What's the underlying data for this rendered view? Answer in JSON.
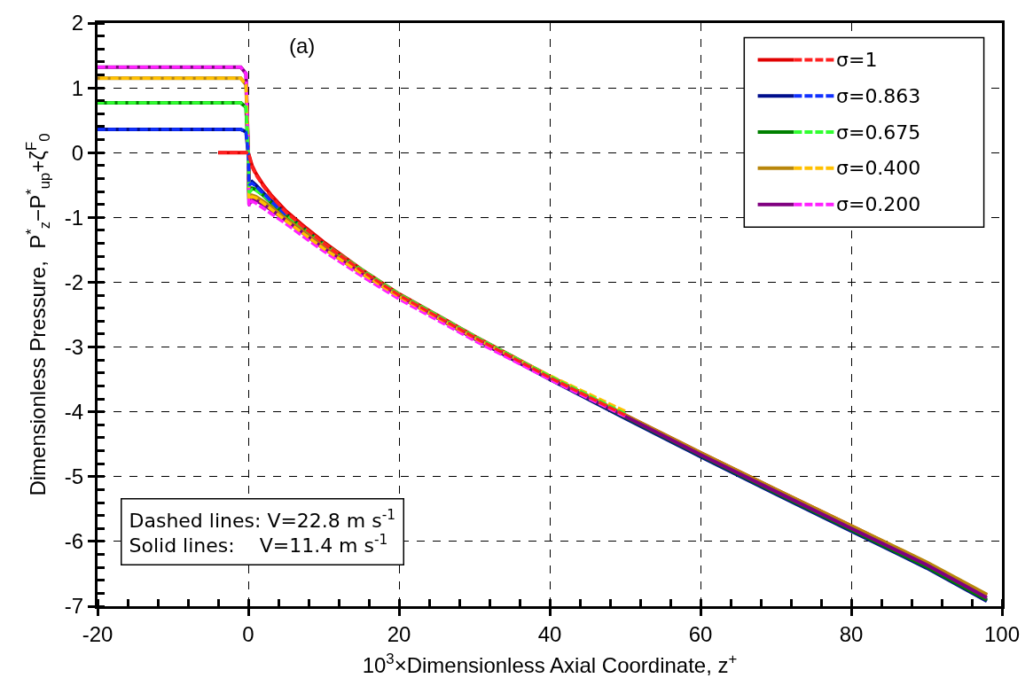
{
  "chart_data": {
    "type": "line",
    "xlabel": "10$^{3}$×Dimensionless Axial Coordinate, z$^{+}$",
    "ylabel": "Dimensionless Pressure,  P$^{*}$$_{z}$−P$^{*}$$_{up}$+ζ$^{F}$$_{0}$",
    "annotations": [
      "(a)",
      "Dashed lines: V=22.8 m s$^{-1}$",
      "Solid lines:    V=11.4 m s$^{-1}$"
    ],
    "xlim": [
      -20,
      100
    ],
    "xticks": [
      -20,
      0,
      20,
      40,
      60,
      80,
      100
    ],
    "ylim": [
      -7,
      2
    ],
    "yticks": [
      -7,
      -6,
      -5,
      -4,
      -3,
      -2,
      -1,
      0,
      1,
      2
    ],
    "grid": true,
    "legend": "top right",
    "marker": "none",
    "series": [
      {
        "name": "σ=1",
        "color": "#e00000",
        "line_style": "solid",
        "x": [
          -4,
          -0.5,
          0,
          0.5,
          1,
          2,
          3,
          5,
          7,
          10,
          15,
          20,
          30,
          40,
          50,
          60,
          70,
          80,
          90,
          98
        ],
        "values": [
          0,
          0,
          0,
          -0.2,
          -0.32,
          -0.5,
          -0.65,
          -0.9,
          -1.1,
          -1.38,
          -1.8,
          -2.18,
          -2.83,
          -3.45,
          -4.05,
          -4.63,
          -5.2,
          -5.76,
          -6.33,
          -6.83
        ]
      },
      {
        "color": "#ff2020",
        "line_style": "dashed",
        "x": [
          -4,
          -0.5,
          0,
          0.5,
          1,
          2,
          3,
          5,
          7,
          10,
          15,
          20,
          30,
          40,
          50
        ],
        "values": [
          0,
          0,
          0,
          -0.22,
          -0.34,
          -0.52,
          -0.67,
          -0.92,
          -1.12,
          -1.4,
          -1.82,
          -2.2,
          -2.85,
          -3.47,
          -4.05
        ]
      },
      {
        "name": "σ=0.863",
        "color": "#000e8c",
        "line_style": "solid",
        "x": [
          -20,
          -1,
          -0.3,
          0,
          0.1,
          0.5,
          1,
          2,
          3,
          5,
          7,
          10,
          15,
          20,
          30,
          40,
          50,
          60,
          70,
          80,
          90,
          98
        ],
        "values": [
          0.36,
          0.36,
          0.32,
          0,
          -0.5,
          -0.45,
          -0.5,
          -0.62,
          -0.74,
          -0.95,
          -1.14,
          -1.42,
          -1.83,
          -2.21,
          -2.87,
          -3.5,
          -4.1,
          -4.69,
          -5.27,
          -5.84,
          -6.41,
          -6.92
        ]
      },
      {
        "color": "#1030ff",
        "line_style": "dashed",
        "x": [
          -20,
          -1,
          -0.3,
          0,
          0.1,
          0.5,
          1,
          2,
          3,
          5
        ],
        "values": [
          0.36,
          0.36,
          0.32,
          0,
          -0.5,
          -0.47,
          -0.52,
          -0.63,
          -0.75,
          -0.96
        ]
      },
      {
        "name": "σ=0.675",
        "color": "#008000",
        "line_style": "solid",
        "x": [
          -20,
          -1,
          -0.3,
          0,
          0.1,
          0.5,
          1,
          2,
          3,
          5,
          7,
          10,
          15,
          20,
          30,
          40,
          50,
          60,
          70,
          80,
          90,
          98
        ],
        "values": [
          0.77,
          0.77,
          0.7,
          0,
          -0.6,
          -0.55,
          -0.57,
          -0.66,
          -0.77,
          -0.97,
          -1.15,
          -1.43,
          -1.83,
          -2.2,
          -2.86,
          -3.48,
          -4.08,
          -4.67,
          -5.25,
          -5.82,
          -6.39,
          -6.9
        ]
      },
      {
        "color": "#30ff30",
        "line_style": "dashed",
        "x": [
          -20,
          -1,
          -0.3,
          0,
          0.1,
          0.5,
          1,
          2,
          3,
          5,
          7,
          10,
          15,
          20,
          30,
          40,
          50
        ],
        "values": [
          0.77,
          0.77,
          0.7,
          0,
          -0.62,
          -0.57,
          -0.58,
          -0.66,
          -0.76,
          -0.95,
          -1.13,
          -1.4,
          -1.8,
          -2.18,
          -2.83,
          -3.45,
          -4.03
        ]
      },
      {
        "name": "σ=0.400",
        "color": "#b8860b",
        "line_style": "solid",
        "x": [
          -20,
          -1,
          -0.3,
          0,
          0.1,
          0.5,
          1,
          2,
          3,
          5,
          7,
          10,
          15,
          20,
          30,
          40,
          50,
          60,
          70,
          80,
          90,
          98
        ],
        "values": [
          1.15,
          1.15,
          1.05,
          0,
          -0.72,
          -0.66,
          -0.68,
          -0.75,
          -0.84,
          -1.02,
          -1.19,
          -1.45,
          -1.84,
          -2.2,
          -2.85,
          -3.46,
          -4.05,
          -4.63,
          -5.2,
          -5.76,
          -6.32,
          -6.82
        ]
      },
      {
        "color": "#ffc000",
        "line_style": "dashed",
        "x": [
          -20,
          -1,
          -0.3,
          0,
          0.1,
          0.5,
          1,
          2,
          3,
          5,
          7,
          10,
          15,
          20,
          30,
          40,
          50
        ],
        "values": [
          1.15,
          1.15,
          1.05,
          0,
          -0.72,
          -0.68,
          -0.7,
          -0.78,
          -0.87,
          -1.05,
          -1.22,
          -1.48,
          -1.86,
          -2.22,
          -2.86,
          -3.44,
          -3.99
        ]
      },
      {
        "name": "σ=0.200",
        "color": "#800080",
        "line_style": "solid",
        "x": [
          -20,
          -1,
          -0.3,
          0,
          0.1,
          0.5,
          1,
          2,
          3,
          5,
          7,
          10,
          15,
          20,
          30,
          40,
          50,
          60,
          70,
          80,
          90,
          98
        ],
        "values": [
          1.32,
          1.32,
          1.22,
          0,
          -0.8,
          -0.72,
          -0.74,
          -0.8,
          -0.88,
          -1.05,
          -1.22,
          -1.48,
          -1.86,
          -2.22,
          -2.87,
          -3.48,
          -4.07,
          -4.66,
          -5.23,
          -5.8,
          -6.36,
          -6.87
        ]
      },
      {
        "color": "#ff20ff",
        "line_style": "dashed",
        "x": [
          -20,
          -1,
          -0.3,
          0,
          0.1,
          0.5,
          1,
          2,
          3,
          5,
          7,
          10,
          15,
          20,
          30,
          40,
          50
        ],
        "values": [
          1.32,
          1.32,
          1.22,
          0,
          -0.82,
          -0.75,
          -0.78,
          -0.86,
          -0.94,
          -1.1,
          -1.27,
          -1.52,
          -1.9,
          -2.26,
          -2.9,
          -3.5,
          -4.07
        ]
      }
    ]
  }
}
